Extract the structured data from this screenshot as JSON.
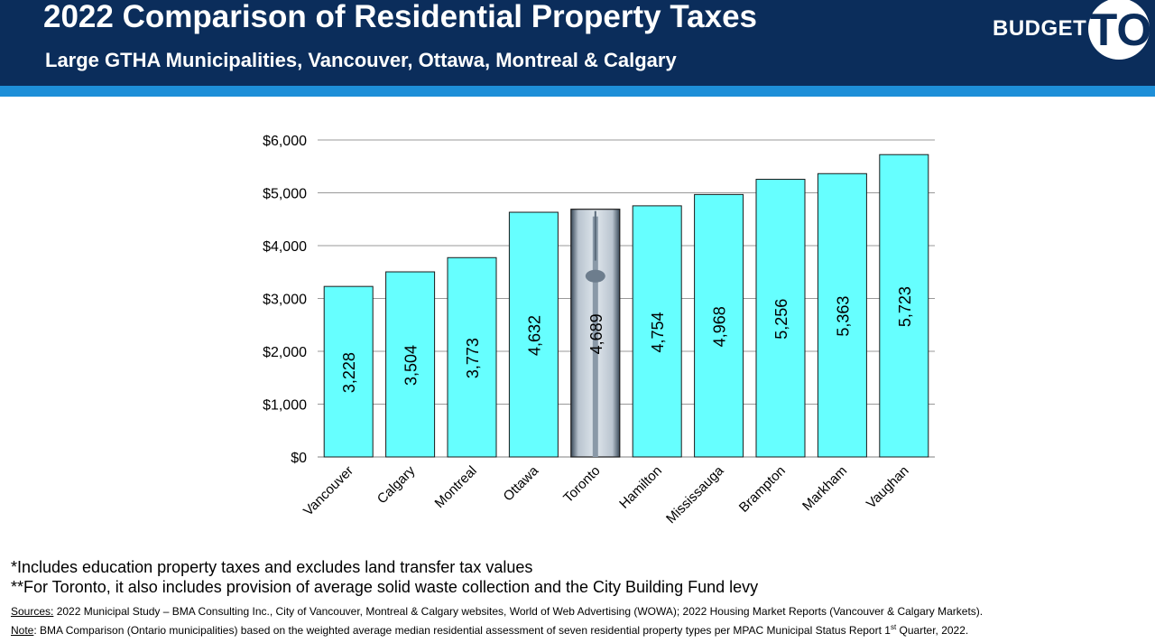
{
  "header": {
    "title": "2022 Comparison of Residential Property Taxes",
    "subtitle": "Large GTHA Municipalities, Vancouver, Ottawa, Montreal & Calgary",
    "logo_text": "BUDGET",
    "logo_to": "TO"
  },
  "chart_data": {
    "type": "bar",
    "categories": [
      "Vancouver",
      "Calgary",
      "Montreal",
      "Ottawa",
      "Toronto",
      "Hamilton",
      "Mississauga",
      "Brampton",
      "Markham",
      "Vaughan"
    ],
    "values": [
      3228,
      3504,
      3773,
      4632,
      4689,
      4754,
      4968,
      5256,
      5363,
      5723
    ],
    "data_labels": [
      "3,228",
      "3,504",
      "3,773",
      "4,632",
      "4,689",
      "4,754",
      "4,968",
      "5,256",
      "5,363",
      "5,723"
    ],
    "highlight": "Toronto",
    "y_ticks": [
      "$0",
      "$1,000",
      "$2,000",
      "$3,000",
      "$4,000",
      "$5,000",
      "$6,000"
    ],
    "ylim": [
      0,
      6000
    ],
    "grid": true,
    "title": "",
    "xlabel": "",
    "ylabel": ""
  },
  "notes": {
    "note1": "*Includes education property taxes and excludes land transfer tax values",
    "note2": "**For Toronto, it also includes provision of average solid waste collection and the City Building Fund levy"
  },
  "sources": {
    "sources_label": "Sources:",
    "sources_text": " 2022 Municipal Study – BMA Consulting Inc., City of Vancouver, Montreal & Calgary websites, World of Web Advertising (WOWA); 2022 Housing Market Reports (Vancouver & Calgary Markets).",
    "note_label": "Note",
    "note_text_a": ": BMA Comparison  (Ontario municipalities) based on the weighted average median residential assessment of seven residential property types per MPAC Municipal Status Report 1",
    "note_sup": "st",
    "note_text_b": " Quarter, 2022."
  },
  "colors": {
    "header_bg": "#0b2d5b",
    "stripe": "#1e8fd8",
    "bar_fill": "#66ffff",
    "bar_stroke": "#1a1a1a",
    "grid": "#999999"
  }
}
